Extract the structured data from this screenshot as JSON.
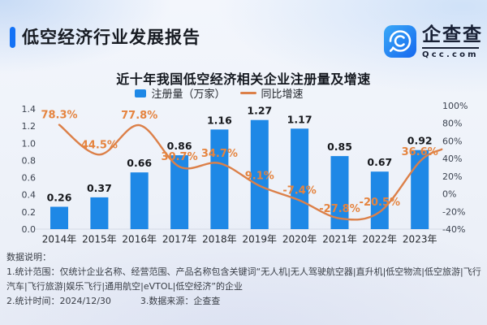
{
  "header": {
    "accent_color": "#1472f5",
    "report_title": "低空经济行业发展报告",
    "logo": {
      "brand": "企查查",
      "domain": "Qcc.com",
      "icon": "qcc-magnifier-icon",
      "icon_color_top": "#3aa9f7",
      "icon_color_bottom": "#1668ef"
    }
  },
  "chart_data": {
    "type": "bar+line",
    "title": "近十年我国低空经济相关企业注册量及增速",
    "categories": [
      "2014年",
      "2015年",
      "2016年",
      "2017年",
      "2018年",
      "2019年",
      "2020年",
      "2021年",
      "2022年",
      "2023年"
    ],
    "series": [
      {
        "name": "注册量（万家）",
        "type": "bar",
        "axis": "left",
        "color": "#1e88e6",
        "values": [
          0.26,
          0.37,
          0.66,
          0.86,
          1.16,
          1.27,
          1.17,
          0.85,
          0.67,
          0.92
        ],
        "labels": [
          "0.26",
          "0.37",
          "0.66",
          "0.86",
          "1.16",
          "1.27",
          "1.17",
          "0.85",
          "0.67",
          "0.92"
        ]
      },
      {
        "name": "同比增速",
        "type": "line",
        "axis": "right",
        "color": "#dc8049",
        "label_color": "#e5843f",
        "values": [
          78.3,
          44.5,
          77.8,
          30.7,
          34.7,
          9.1,
          -7.4,
          -27.8,
          -20.5,
          36.6
        ],
        "labels": [
          "78.3%",
          "44.5%",
          "77.8%",
          "30.7%",
          "34.7%",
          "9.1%",
          "-7.4%",
          "-27.8%",
          "-20.5%",
          "36.6%"
        ]
      }
    ],
    "left_axis": {
      "range": [
        0,
        1.4
      ],
      "ticks": [
        "0.0",
        "0.2",
        "0.4",
        "0.6",
        "0.8",
        "1.0",
        "1.2",
        "1.4"
      ]
    },
    "right_axis": {
      "range": [
        -40,
        100
      ],
      "ticks": [
        "-40%",
        "-20%",
        "0%",
        "20%",
        "40%",
        "60%",
        "80%",
        "100%"
      ]
    },
    "legend_position": "top",
    "grid": false
  },
  "footnotes": {
    "heading": "数据说明：",
    "line1": "1.统计范围：仅统计企业名称、经营范围、产品名称包含关键词“无人机|无人驾驶航空器|直升机|低空物流|低空旅游|飞行汽车|飞行旅游|娱乐飞行|通用航空|eVTOL|低空经济”的企业",
    "line2_time": "2.统计时间：2024/12/30",
    "line2_source": "3.数据来源：企查查"
  }
}
